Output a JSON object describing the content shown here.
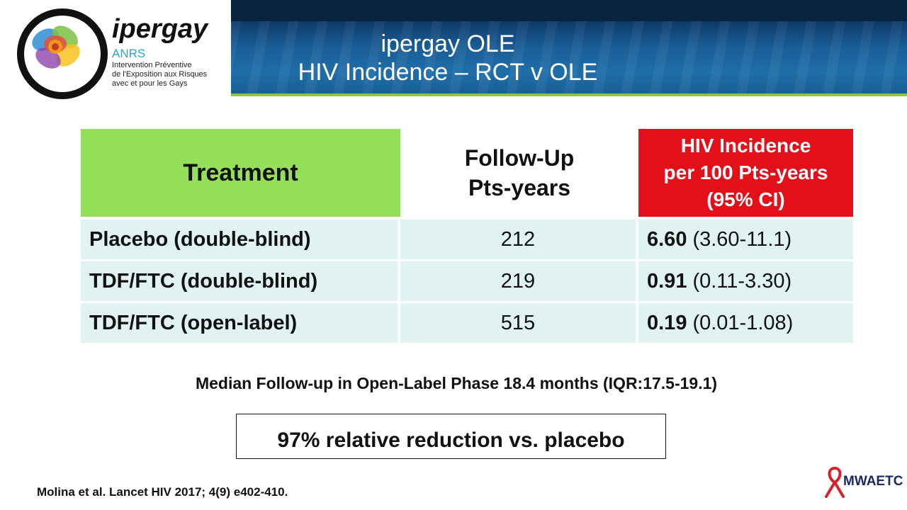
{
  "header": {
    "title_line1": "ipergay OLE",
    "title_line2": "HIV Incidence – RCT v OLE"
  },
  "logo": {
    "wordmark": "ipergay",
    "org": "ANRS",
    "subtitle_lines": [
      "Intervention Préventive",
      "de l'Exposition aux Risques",
      "avec et pour les Gays"
    ]
  },
  "table": {
    "headers": {
      "treatment": "Treatment",
      "followup_line1": "Follow-Up",
      "followup_line2": "Pts-years",
      "incidence_line1": "HIV Incidence",
      "incidence_line2": "per 100 Pts-years",
      "incidence_line3": "(95% CI)"
    },
    "rows": [
      {
        "treatment": "Placebo (double-blind)",
        "followup": "212",
        "incidence": "6.60",
        "ci": "(3.60-11.1)"
      },
      {
        "treatment": "TDF/FTC (double-blind)",
        "followup": "219",
        "incidence": "0.91",
        "ci": "(0.11-3.30)"
      },
      {
        "treatment": "TDF/FTC (open-label)",
        "followup": "515",
        "incidence": "0.19",
        "ci": "(0.01-1.08)"
      }
    ]
  },
  "median_text": "Median Follow-up in Open-Label Phase 18.4 months (IQR:17.5-19.1)",
  "callout": "97% relative reduction vs. placebo",
  "citation": "Molina et al. Lancet HIV 2017; 4(9) e402-410.",
  "footer_logo": "MWAETC",
  "colors": {
    "treatment_header": "#95e05a",
    "incidence_header": "#e3101a",
    "row_fill": "#e0f2f1",
    "header_band": "#1a5e98"
  }
}
